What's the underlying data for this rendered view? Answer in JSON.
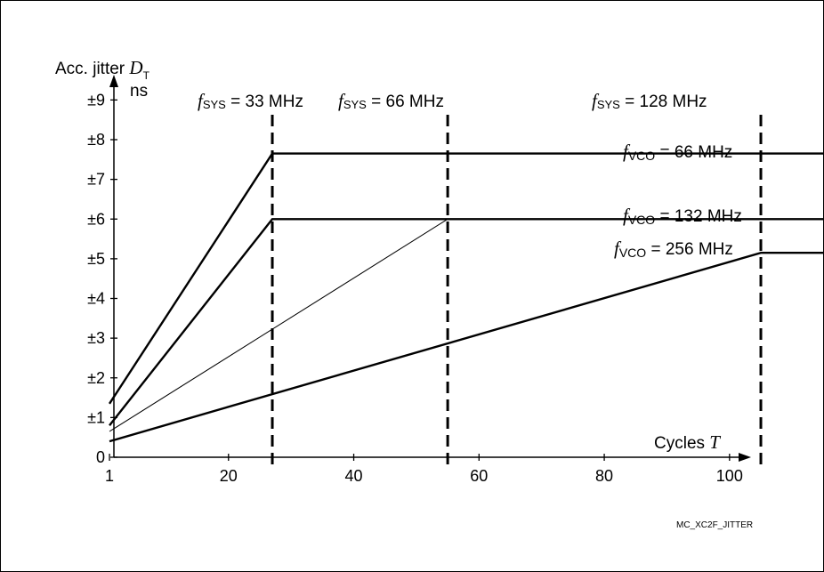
{
  "chart_data": {
    "type": "line",
    "ylabel_prefix": "Acc. jitter ",
    "ylabel_var": "D",
    "ylabel_sub": "T",
    "yunit": "ns",
    "xlabel_prefix": "Cycles ",
    "xlabel_var": "T",
    "xlim": [
      0,
      120
    ],
    "ylim": [
      0,
      9.6
    ],
    "x_ticks": [
      1,
      20,
      40,
      60,
      80,
      100
    ],
    "x_tick_labels": [
      "1",
      "20",
      "40",
      "60",
      "80",
      "100"
    ],
    "y_ticks": [
      0,
      1,
      2,
      3,
      4,
      5,
      6,
      7,
      8,
      9
    ],
    "y_tick_labels": [
      "0",
      "±1",
      "±2",
      "±3",
      "±4",
      "±5",
      "±6",
      "±7",
      "±8",
      "±9"
    ],
    "vlines": [
      {
        "x": 27,
        "var": "f",
        "sub": "SYS",
        "label": " = 33 MHz"
      },
      {
        "x": 55,
        "var": "f",
        "sub": "SYS",
        "label": " = 66 MHz"
      },
      {
        "x": 105,
        "var": "f",
        "sub": "SYS",
        "label": " = 128 MHz"
      }
    ],
    "series": [
      {
        "x": [
          1,
          27,
          120
        ],
        "y": [
          1.35,
          7.65,
          7.65
        ]
      },
      {
        "x": [
          1,
          27,
          120
        ],
        "y": [
          0.8,
          6.0,
          6.0
        ]
      },
      {
        "x": [
          1,
          55
        ],
        "y": [
          0.65,
          6.0
        ]
      },
      {
        "x": [
          1,
          105,
          120
        ],
        "y": [
          0.4,
          5.15,
          5.15
        ]
      }
    ],
    "series_labels": [
      {
        "var": "f",
        "sub": "VCO",
        "label": " = 66 MHz"
      },
      {
        "var": "f",
        "sub": "VCO",
        "label": " = 132 MHz"
      },
      {
        "var": "f",
        "sub": "VCO",
        "label": " = 256 MHz"
      }
    ]
  },
  "footer_code": "MC_XC2F_JITTER"
}
